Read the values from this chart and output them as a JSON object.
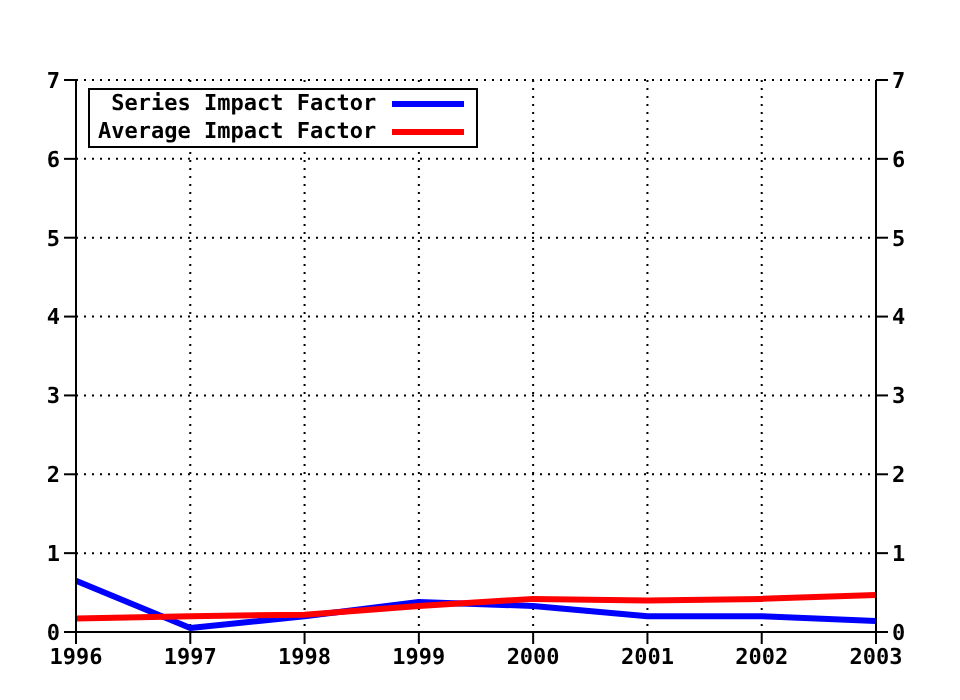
{
  "chart_data": {
    "type": "line",
    "x": [
      1996,
      1997,
      1998,
      1999,
      2000,
      2001,
      2002,
      2003
    ],
    "series": [
      {
        "name": "Series Impact Factor",
        "color": "#0000ff",
        "values": [
          0.65,
          0.05,
          0.2,
          0.38,
          0.33,
          0.2,
          0.2,
          0.14
        ]
      },
      {
        "name": "Average Impact Factor",
        "color": "#ff0000",
        "values": [
          0.17,
          0.2,
          0.22,
          0.33,
          0.42,
          0.4,
          0.42,
          0.47
        ]
      }
    ],
    "xlim": [
      1996,
      2003
    ],
    "xticks": [
      1996,
      1997,
      1998,
      1999,
      2000,
      2001,
      2002,
      2003
    ],
    "ylim": [
      0,
      7
    ],
    "yticks": [
      0,
      1,
      2,
      3,
      4,
      5,
      6,
      7
    ],
    "y2lim": [
      0,
      7
    ],
    "y2ticks": [
      0,
      1,
      2,
      3,
      4,
      5,
      6,
      7
    ],
    "grid": true,
    "legend": "top left",
    "marker": "none",
    "line_style": "solid"
  }
}
